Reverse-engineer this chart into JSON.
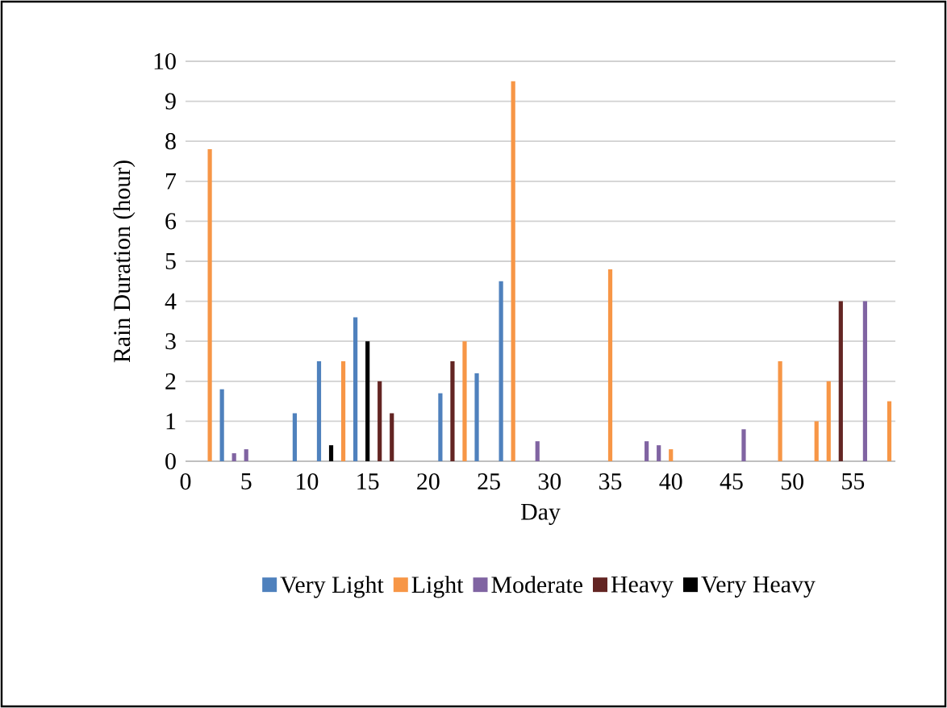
{
  "chart_data": {
    "type": "bar",
    "xlabel": "Day",
    "ylabel": "Rain Duration (hour)",
    "xlim": [
      0,
      58.5
    ],
    "xticks": [
      0,
      5,
      10,
      15,
      20,
      25,
      30,
      35,
      40,
      45,
      50,
      55
    ],
    "ylim": [
      0,
      10
    ],
    "yticks": [
      0,
      1,
      2,
      3,
      4,
      5,
      6,
      7,
      8,
      9,
      10
    ],
    "grid": "y",
    "legend": "bottom",
    "series": [
      {
        "name": "Very Light",
        "color": "#4f81bd",
        "x": [
          3,
          9,
          11,
          14,
          21,
          24,
          26
        ],
        "values": [
          1.8,
          1.2,
          2.5,
          3.6,
          1.7,
          2.2,
          4.5
        ]
      },
      {
        "name": "Light",
        "color": "#f79646",
        "x": [
          2,
          13,
          23,
          27,
          35,
          40,
          49,
          52,
          53,
          58
        ],
        "values": [
          7.8,
          2.5,
          3.0,
          9.5,
          4.8,
          0.3,
          2.5,
          1.0,
          2.0,
          1.5
        ]
      },
      {
        "name": "Moderate",
        "color": "#8064a2",
        "x": [
          4,
          5,
          29,
          38,
          39,
          46,
          56
        ],
        "values": [
          0.2,
          0.3,
          0.5,
          0.5,
          0.4,
          0.8,
          4.0
        ]
      },
      {
        "name": "Heavy",
        "color": "#632523",
        "x": [
          16,
          17,
          22,
          54
        ],
        "values": [
          2.0,
          1.2,
          2.5,
          4.0
        ]
      },
      {
        "name": "Very Heavy",
        "color": "#000000",
        "x": [
          12,
          15
        ],
        "values": [
          0.4,
          3.0
        ]
      }
    ]
  }
}
